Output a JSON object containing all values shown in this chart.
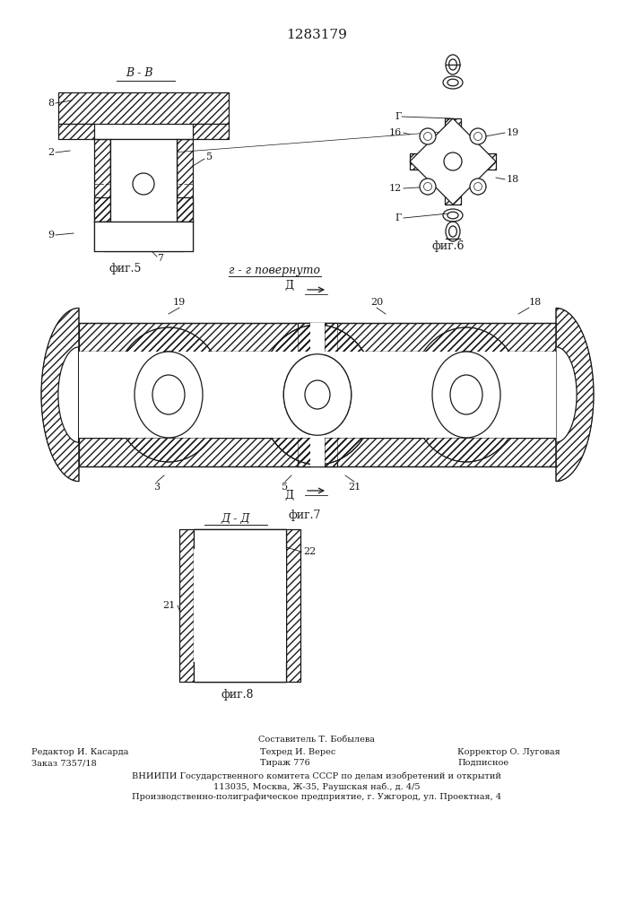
{
  "patent_number": "1283179",
  "background_color": "#ffffff",
  "line_color": "#1a1a1a",
  "fig5_label": "фиг.5",
  "fig6_label": "фиг.6",
  "fig7_label": "фиг.7",
  "fig8_label": "фиг.8",
  "section_label_bb": "В - В",
  "section_label_gg": "г - г повернуто",
  "section_label_dd": "Д - Д",
  "footer_line1": "Составитель Т. Бобылева",
  "footer_line2_left": "Редактор И. Касарда",
  "footer_line2_mid": "Техред И. Верес",
  "footer_line2_right": "Корректор О. Луговая",
  "footer_line3_left": "Заказ 7357/18",
  "footer_line3_mid": "Тираж 776",
  "footer_line3_right": "Подписное",
  "footer_line4": "ВНИИПИ Государственного комитета СССР по делам изобретений и открытий",
  "footer_line5": "113035, Москва, Ж-35, Раушская наб., д. 4/5",
  "footer_line6": "Производственно-полиграфическое предприятие, г. Ужгород, ул. Проектная, 4"
}
